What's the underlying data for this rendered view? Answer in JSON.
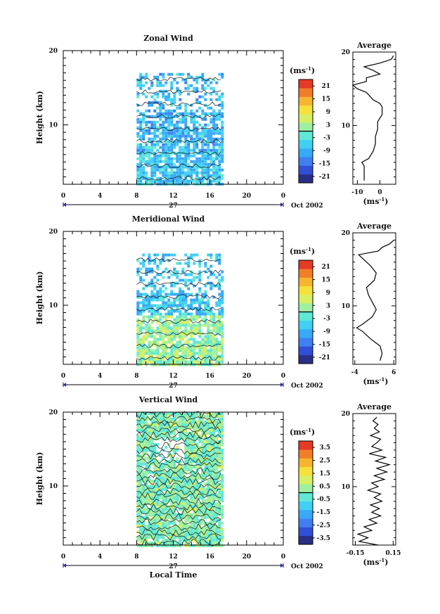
{
  "chart_data": [
    {
      "type": "heatmap",
      "title": "Zonal Wind",
      "ylabel": "Height (km)",
      "xlabel": "",
      "x_ticks": [
        "0",
        "4",
        "8",
        "12",
        "16",
        "20",
        "0"
      ],
      "y_ticks": [
        "20",
        "10"
      ],
      "xlim": [
        0,
        24
      ],
      "ylim": [
        2,
        20
      ],
      "date_label": "27",
      "month_label": "Oct 2002",
      "colorbar": {
        "unit": "(ms",
        "unit_exp": "-1",
        "unit_close": ")",
        "ticks": [
          "21",
          "15",
          "9",
          "3",
          "-3",
          "-9",
          "-15",
          "-21"
        ],
        "range": [
          -24,
          24
        ]
      },
      "data_extent": {
        "x": [
          8,
          17.5
        ],
        "y": [
          2,
          17
        ]
      },
      "profile": {
        "title": "Average",
        "x_ticks": [
          "-10",
          "0"
        ],
        "xlim": [
          -12,
          7
        ],
        "xlabel": "(ms",
        "xlabel_exp": "-1",
        "xlabel_close": ")",
        "y_ticks": [
          "20",
          "10"
        ],
        "heights": [
          2.5,
          3.5,
          4.5,
          5,
          5.5,
          6.5,
          7.5,
          8.5,
          9.5,
          10.5,
          11.5,
          12.5,
          13,
          13.5,
          14.5,
          15,
          15.5,
          16,
          16.5,
          17,
          17.5,
          18,
          18.5,
          19,
          19.5
        ],
        "values": [
          -7,
          -7,
          -7,
          -8,
          -5,
          -3,
          -2,
          -2,
          -1,
          -1,
          1,
          1,
          0,
          -3,
          -6,
          -10,
          -12,
          -6,
          -6,
          0,
          -3,
          -7,
          0,
          5,
          6
        ]
      }
    },
    {
      "type": "heatmap",
      "title": "Meridional Wind",
      "ylabel": "Height (km)",
      "xlabel": "",
      "x_ticks": [
        "0",
        "4",
        "8",
        "12",
        "16",
        "20",
        "0"
      ],
      "y_ticks": [
        "20",
        "10"
      ],
      "xlim": [
        0,
        24
      ],
      "ylim": [
        2,
        20
      ],
      "date_label": "27",
      "month_label": "Oct 2002",
      "colorbar": {
        "unit": "(ms",
        "unit_exp": "-1",
        "unit_close": ")",
        "ticks": [
          "21",
          "15",
          "9",
          "3",
          "-3",
          "-9",
          "-15",
          "-21"
        ],
        "range": [
          -24,
          24
        ]
      },
      "data_extent": {
        "x": [
          8,
          17.5
        ],
        "y": [
          2,
          17
        ]
      },
      "profile": {
        "title": "Average",
        "x_ticks": [
          "-4",
          "6"
        ],
        "xlim": [
          -4.5,
          6.5
        ],
        "xlabel": "(ms",
        "xlabel_exp": "-1",
        "xlabel_close": ")",
        "y_ticks": [
          "20",
          "10"
        ],
        "heights": [
          2.5,
          3.5,
          4.5,
          5.5,
          6.5,
          7,
          7.5,
          8.5,
          9.5,
          10.5,
          11.5,
          12.5,
          13.5,
          14.5,
          15.5,
          16.5,
          17,
          17.5,
          18,
          18.5,
          19
        ],
        "values": [
          2.5,
          3,
          2.5,
          0,
          -2,
          -3.5,
          -2,
          0.5,
          1.5,
          0.5,
          -0.5,
          -1,
          1,
          1.5,
          0,
          -2,
          -3,
          2,
          3,
          5,
          6
        ]
      }
    },
    {
      "type": "heatmap",
      "title": "Vertical Wind",
      "ylabel": "Height (km)",
      "xlabel": "Local Time",
      "x_ticks": [
        "0",
        "4",
        "8",
        "12",
        "16",
        "20",
        "0"
      ],
      "y_ticks": [
        "20",
        "10"
      ],
      "xlim": [
        0,
        24
      ],
      "ylim": [
        2,
        20
      ],
      "date_label": "27",
      "month_label": "Oct 2002",
      "colorbar": {
        "unit": "(ms",
        "unit_exp": "-1",
        "unit_close": ")",
        "ticks": [
          "3.5",
          "2.5",
          "1.5",
          "0.5",
          "-0.5",
          "-1.5",
          "-2.5",
          "-3.5"
        ],
        "range": [
          -4,
          4
        ]
      },
      "data_extent": {
        "x": [
          8,
          17.5
        ],
        "y": [
          2,
          20
        ]
      },
      "profile": {
        "title": "Average",
        "x_ticks": [
          "-0.15",
          "0.15"
        ],
        "xlim": [
          -0.17,
          0.17
        ],
        "xlabel": "(ms",
        "xlabel_exp": "-1",
        "xlabel_close": ")",
        "y_ticks": [
          "20",
          "10"
        ],
        "heights": [
          2,
          2.5,
          3,
          3.5,
          4,
          4.5,
          5,
          5.5,
          6,
          6.5,
          7,
          7.5,
          8,
          8.5,
          9,
          9.5,
          10,
          10.5,
          11,
          11.5,
          12,
          12.5,
          13,
          13.5,
          14,
          14.5,
          15,
          15.5,
          16,
          16.5,
          17,
          17.5,
          18,
          18.5,
          19,
          19.5
        ],
        "values": [
          0.03,
          -0.12,
          -0.05,
          -0.13,
          -0.02,
          -0.08,
          0.02,
          -0.04,
          0.05,
          -0.02,
          0.04,
          -0.03,
          0.06,
          0.0,
          0.05,
          -0.05,
          0.03,
          -0.02,
          0.08,
          0.0,
          0.1,
          0.02,
          0.12,
          0.01,
          0.09,
          -0.04,
          0.06,
          -0.02,
          0.02,
          0.05,
          -0.03,
          0.04,
          0.0,
          0.03,
          -0.01,
          0.02
        ]
      }
    }
  ]
}
